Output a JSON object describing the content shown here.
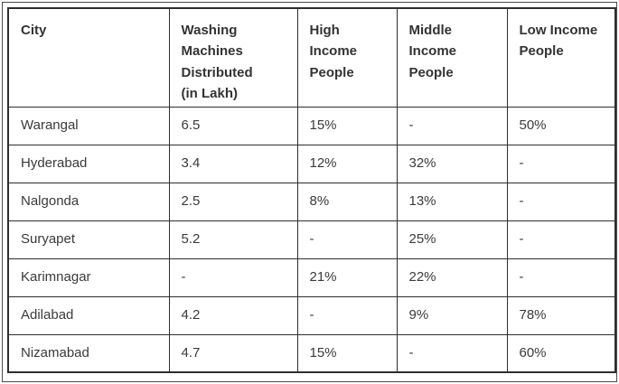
{
  "page": {
    "background": "#ffffff",
    "border_color": "#2e2e2e",
    "outer_frame_color": "#4d4d4d",
    "text_color": "#333333"
  },
  "table": {
    "headers": [
      "City",
      "Washing\nMachines\nDistributed\n(in Lakh)",
      "High\nIncome\nPeople",
      "Middle\nIncome\nPeople",
      "Low Income\nPeople"
    ],
    "rows": [
      [
        "Warangal",
        "6.5",
        "15%",
        "-",
        "50%"
      ],
      [
        "Hyderabad",
        "3.4",
        "12%",
        "32%",
        "-"
      ],
      [
        "Nalgonda",
        "2.5",
        "8%",
        "13%",
        "-"
      ],
      [
        "Suryapet",
        "5.2",
        "-",
        "25%",
        "-"
      ],
      [
        "Karimnagar",
        "-",
        "21%",
        "22%",
        "-"
      ],
      [
        "Adilabad",
        "4.2",
        "-",
        "9%",
        "78%"
      ],
      [
        "Nizamabad",
        "4.7",
        "15%",
        "-",
        "60%"
      ]
    ]
  }
}
